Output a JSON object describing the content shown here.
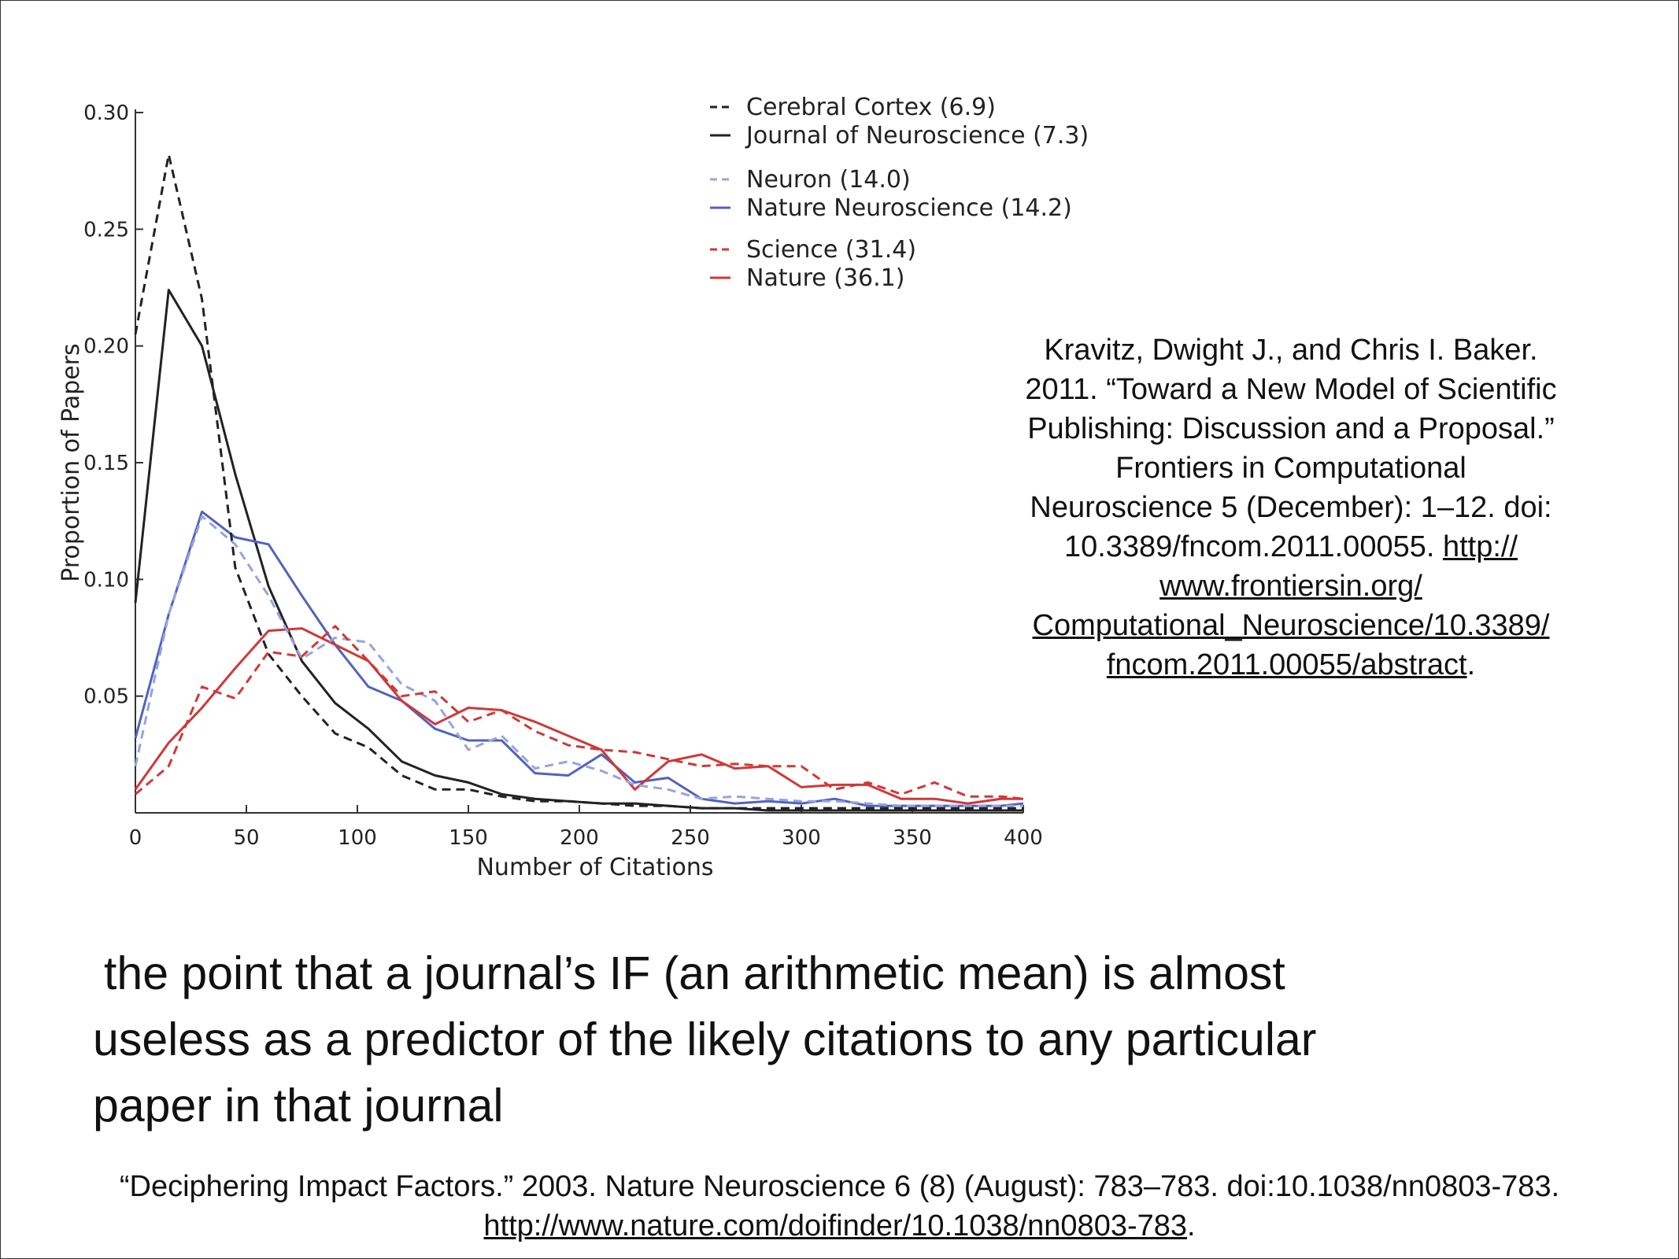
{
  "chart_data": {
    "type": "line",
    "title": "",
    "xlabel": "Number of Citations",
    "ylabel": "Proportion of Papers",
    "xlim": [
      0,
      400
    ],
    "ylim": [
      0,
      0.3
    ],
    "x_ticks": [
      0,
      50,
      100,
      150,
      200,
      250,
      300,
      350,
      400
    ],
    "x_tick_labels": [
      "0",
      "50",
      "100",
      "150",
      "200",
      "250",
      "300",
      "350",
      "400"
    ],
    "y_ticks": [
      0.05,
      0.1,
      0.15,
      0.2,
      0.25,
      0.3
    ],
    "y_tick_labels": [
      "0.05",
      "0.10",
      "0.15",
      "0.20",
      "0.25",
      "0.30"
    ],
    "grid": false,
    "legend_position": "top-right",
    "x": [
      0,
      15,
      30,
      45,
      60,
      75,
      90,
      105,
      120,
      135,
      150,
      165,
      180,
      195,
      210,
      225,
      240,
      255,
      270,
      285,
      300,
      315,
      330,
      345,
      360,
      375,
      390,
      400
    ],
    "series": [
      {
        "name": "Cerebral Cortex (6.9)",
        "color": "#222222",
        "dash": true,
        "values": [
          0.205,
          0.282,
          0.22,
          0.105,
          0.068,
          0.05,
          0.034,
          0.028,
          0.016,
          0.01,
          0.01,
          0.007,
          0.005,
          0.005,
          0.004,
          0.003,
          0.003,
          0.002,
          0.002,
          0.002,
          0.002,
          0.002,
          0.002,
          0.002,
          0.002,
          0.002,
          0.002,
          0.002
        ]
      },
      {
        "name": "Journal of Neuroscience (7.3)",
        "color": "#222222",
        "dash": false,
        "values": [
          0.09,
          0.224,
          0.2,
          0.145,
          0.097,
          0.065,
          0.047,
          0.036,
          0.022,
          0.016,
          0.013,
          0.008,
          0.006,
          0.005,
          0.004,
          0.004,
          0.003,
          0.002,
          0.002,
          0.001,
          0.001,
          0.001,
          0.001,
          0.001,
          0.001,
          0.001,
          0.001,
          0.001
        ]
      },
      {
        "name": "Neuron (14.0)",
        "color": "#97a3e0",
        "dash": true,
        "values": [
          0.02,
          0.085,
          0.127,
          0.115,
          0.093,
          0.066,
          0.075,
          0.073,
          0.055,
          0.048,
          0.027,
          0.033,
          0.019,
          0.022,
          0.018,
          0.012,
          0.01,
          0.006,
          0.007,
          0.006,
          0.005,
          0.005,
          0.004,
          0.003,
          0.003,
          0.003,
          0.003,
          0.003
        ]
      },
      {
        "name": "Nature Neuroscience (14.2)",
        "color": "#5063c0",
        "dash": false,
        "values": [
          0.032,
          0.085,
          0.129,
          0.118,
          0.115,
          0.093,
          0.072,
          0.054,
          0.048,
          0.036,
          0.031,
          0.031,
          0.017,
          0.016,
          0.025,
          0.013,
          0.015,
          0.006,
          0.004,
          0.005,
          0.004,
          0.006,
          0.003,
          0.003,
          0.003,
          0.003,
          0.003,
          0.004
        ]
      },
      {
        "name": "Science (31.4)",
        "color": "#d03838",
        "dash": true,
        "values": [
          0.008,
          0.02,
          0.054,
          0.049,
          0.069,
          0.067,
          0.08,
          0.065,
          0.05,
          0.052,
          0.039,
          0.044,
          0.035,
          0.029,
          0.027,
          0.026,
          0.023,
          0.02,
          0.021,
          0.02,
          0.02,
          0.01,
          0.013,
          0.008,
          0.013,
          0.007,
          0.007,
          0.006
        ]
      },
      {
        "name": "Nature (36.1)",
        "color": "#d03838",
        "dash": false,
        "values": [
          0.01,
          0.03,
          0.045,
          0.062,
          0.078,
          0.079,
          0.072,
          0.065,
          0.048,
          0.038,
          0.045,
          0.044,
          0.039,
          0.033,
          0.027,
          0.01,
          0.022,
          0.025,
          0.019,
          0.02,
          0.011,
          0.012,
          0.012,
          0.006,
          0.006,
          0.004,
          0.006,
          0.006
        ]
      }
    ]
  },
  "citation": {
    "lines": [
      "Kravitz, Dwight J., and Chris I. Baker.",
      "2011. “Toward a New Model of Scientific",
      "Publishing: Discussion and a Proposal.”",
      "Frontiers in Computational",
      "Neuroscience 5 (December): 1–12. doi:"
    ],
    "line6_text": "10.3389/fncom.2011.00055. ",
    "line6_link": "http://",
    "link_lines": [
      "www.frontiersin.org/",
      "Computational_Neuroscience/10.3389/"
    ],
    "last_link": "fncom.2011.00055/abstract",
    "last_suffix": "."
  },
  "caption": {
    "lines": [
      "the point that a journal’s IF (an arithmetic mean) is almost",
      "useless as a predictor of the likely citations to any particular",
      "paper in that journal"
    ]
  },
  "footer": {
    "text": "“Deciphering Impact Factors.” 2003. Nature Neuroscience 6 (8) (August): 783–783. doi:10.1038/nn0803-783.",
    "link": "http://www.nature.com/doifinder/10.1038/nn0803-783",
    "suffix": "."
  }
}
